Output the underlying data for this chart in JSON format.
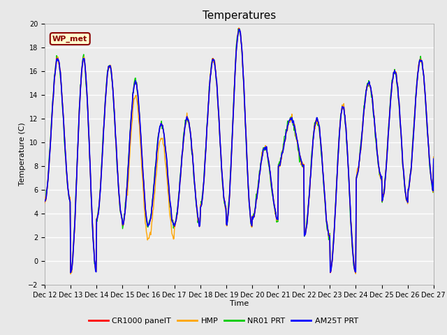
{
  "title": "Temperatures",
  "xlabel": "Time",
  "ylabel": "Temperature (C)",
  "annotation": "WP_met",
  "annotation_color": "#8B0000",
  "annotation_bg": "#FFFACD",
  "annotation_border": "#8B0000",
  "ylim": [
    -2,
    20
  ],
  "yticks": [
    -2,
    0,
    2,
    4,
    6,
    8,
    10,
    12,
    14,
    16,
    18,
    20
  ],
  "series_colors": {
    "CR1000 panelT": "#FF0000",
    "HMP": "#FFA500",
    "NR01 PRT": "#00CC00",
    "AM25T PRT": "#0000FF"
  },
  "series_lw": {
    "CR1000 panelT": 1.0,
    "HMP": 1.0,
    "NR01 PRT": 1.0,
    "AM25T PRT": 1.2
  },
  "fig_bg": "#E8E8E8",
  "plot_bg": "#EBEBEB",
  "grid_color": "#FFFFFF",
  "xtick_labels": [
    "Dec 12",
    "Dec 13",
    "Dec 14",
    "Dec 15",
    "Dec 16",
    "Dec 17",
    "Dec 18",
    "Dec 19",
    "Dec 20",
    "Dec 21",
    "Dec 22",
    "Dec 23",
    "Dec 24",
    "Dec 25",
    "Dec 26",
    "Dec 27"
  ],
  "n_points": 720,
  "title_fontsize": 11,
  "tick_fontsize": 7,
  "label_fontsize": 8
}
